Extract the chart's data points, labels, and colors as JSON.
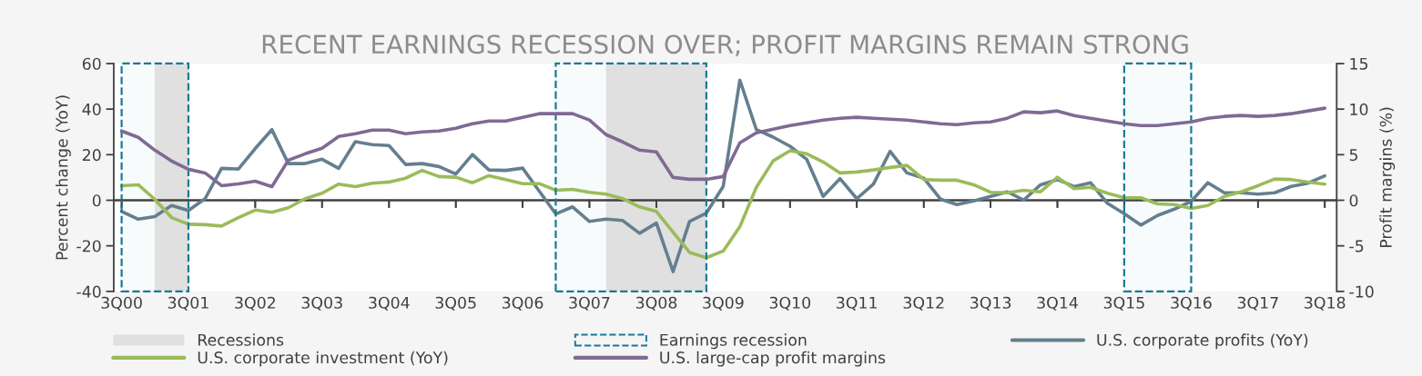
{
  "chart_data": {
    "type": "line",
    "title": "RECENT EARNINGS RECESSION OVER; PROFIT MARGINS REMAIN STRONG",
    "ylabel": "Percent change (YoY)",
    "y2label": "Profit margins (%)",
    "x": [
      "2000-09",
      "2000-12",
      "2001-03",
      "2001-06",
      "2001-09",
      "2001-12",
      "2002-03",
      "2002-06",
      "2002-09",
      "2002-12",
      "2003-03",
      "2003-06",
      "2003-09",
      "2003-12",
      "2004-03",
      "2004-06",
      "2004-09",
      "2004-12",
      "2005-03",
      "2005-06",
      "2005-09",
      "2005-12",
      "2006-03",
      "2006-06",
      "2006-09",
      "2006-12",
      "2007-03",
      "2007-06",
      "2007-09",
      "2007-12",
      "2008-03",
      "2008-06",
      "2008-09",
      "2008-12",
      "2009-03",
      "2009-06",
      "2009-09",
      "2009-12",
      "2010-03",
      "2010-06",
      "2010-09",
      "2010-12",
      "2011-03",
      "2011-06",
      "2011-09",
      "2011-12",
      "2012-03",
      "2012-06",
      "2012-09",
      "2012-12",
      "2013-03",
      "2013-06",
      "2013-09",
      "2013-12",
      "2014-03",
      "2014-06",
      "2014-09",
      "2014-12",
      "2015-03",
      "2015-06",
      "2015-09",
      "2015-12",
      "2016-03",
      "2016-06",
      "2016-09",
      "2016-12",
      "2017-03",
      "2017-06",
      "2017-09",
      "2017-12",
      "2018-03",
      "2018-06",
      "2018-09"
    ],
    "xlim": [
      "2000-07-20",
      "2018-11-05"
    ],
    "xticks": [
      {
        "value": "2000-09",
        "label": "3Q00"
      },
      {
        "value": "2001-09",
        "label": "3Q01"
      },
      {
        "value": "2002-09",
        "label": "3Q02"
      },
      {
        "value": "2003-09",
        "label": "3Q03"
      },
      {
        "value": "2004-09",
        "label": "3Q04"
      },
      {
        "value": "2005-09",
        "label": "3Q05"
      },
      {
        "value": "2006-09",
        "label": "3Q06"
      },
      {
        "value": "2007-09",
        "label": "3Q07"
      },
      {
        "value": "2008-09",
        "label": "3Q08"
      },
      {
        "value": "2009-09",
        "label": "3Q09"
      },
      {
        "value": "2010-09",
        "label": "3Q10"
      },
      {
        "value": "2011-09",
        "label": "3Q11"
      },
      {
        "value": "2012-09",
        "label": "3Q12"
      },
      {
        "value": "2013-09",
        "label": "3Q13"
      },
      {
        "value": "2014-09",
        "label": "3Q14"
      },
      {
        "value": "2015-09",
        "label": "3Q15"
      },
      {
        "value": "2016-09",
        "label": "3Q16"
      },
      {
        "value": "2017-09",
        "label": "3Q17"
      },
      {
        "value": "2018-09",
        "label": "3Q18"
      }
    ],
    "ylim": [
      -40,
      60
    ],
    "yticks": [
      -40,
      -20,
      0,
      20,
      40,
      60
    ],
    "y2lim": [
      -10,
      15
    ],
    "y2ticks": [
      -10,
      -5,
      0,
      5,
      10,
      15
    ],
    "series": [
      {
        "name": "U.S. corporate profits (YoY)",
        "color": "#647f8f",
        "values": [
          -4.9,
          -8.3,
          -7.2,
          -2.3,
          -4.5,
          0.7,
          14,
          13.7,
          22.7,
          31,
          16.1,
          16.1,
          18,
          14,
          25.7,
          24.4,
          24,
          15.7,
          16.1,
          14.8,
          11.5,
          20.1,
          13.3,
          13.1,
          14.1,
          4,
          -6,
          -2.9,
          -9.3,
          -8.3,
          -8.9,
          -14.5,
          -10,
          -31.3,
          -9.3,
          -5.6,
          6.1,
          52.7,
          31,
          27.7,
          23.7,
          18,
          1.7,
          9.5,
          0.7,
          7.1,
          21.5,
          12,
          9.7,
          0.5,
          -1.9,
          -0.3,
          1.7,
          3.7,
          0.1,
          6.8,
          9.1,
          6,
          7.7,
          -1.3,
          -5.9,
          -10.9,
          -6.7,
          -3.9,
          -0.5,
          7.7,
          3.3,
          3.3,
          2.7,
          3.3,
          6.1,
          7.5,
          10.7
        ]
      },
      {
        "name": "U.S. corporate investment (YoY)",
        "color": "#9bbb59",
        "values": [
          6.4,
          6.8,
          0.4,
          -7.6,
          -10.5,
          -10.7,
          -11.3,
          -7.6,
          -4.3,
          -5.3,
          -3.3,
          0.7,
          3.1,
          7.1,
          6,
          7.5,
          8,
          9.7,
          13.1,
          10.4,
          10.1,
          7.7,
          10.8,
          9.1,
          7.3,
          7.3,
          4.4,
          4.8,
          3.5,
          2.7,
          0.7,
          -2.9,
          -4.9,
          -14,
          -22.9,
          -25.2,
          -22.3,
          -11.6,
          5.7,
          17.3,
          21.7,
          20.4,
          16.8,
          12,
          12.4,
          13.3,
          14.4,
          15.3,
          9.1,
          8.8,
          8.8,
          6.8,
          3.5,
          3.3,
          4.4,
          3.7,
          10.1,
          5.1,
          5.7,
          3.1,
          1.1,
          1.1,
          -1.6,
          -1.9,
          -3.6,
          -2.3,
          1.7,
          3.7,
          6.4,
          9.3,
          9.1,
          8,
          7.1
        ]
      },
      {
        "name": "U.S. large-cap profit margins",
        "color": "#7f6a94",
        "axis": "y2",
        "values": [
          7.6,
          6.9,
          5.5,
          4.3,
          3.4,
          3.0,
          1.6,
          1.8,
          2.1,
          1.5,
          4.4,
          5.1,
          5.7,
          7.0,
          7.3,
          7.7,
          7.7,
          7.3,
          7.5,
          7.6,
          7.9,
          8.4,
          8.7,
          8.7,
          9.1,
          9.5,
          9.5,
          9.5,
          8.8,
          7.2,
          6.4,
          5.5,
          5.3,
          2.5,
          2.3,
          2.3,
          2.6,
          6.3,
          7.4,
          7.8,
          8.2,
          8.5,
          8.8,
          9.0,
          9.1,
          9.0,
          8.9,
          8.8,
          8.6,
          8.4,
          8.3,
          8.5,
          8.6,
          9.0,
          9.7,
          9.6,
          9.8,
          9.3,
          9.0,
          8.7,
          8.4,
          8.2,
          8.2,
          8.4,
          8.6,
          9.0,
          9.2,
          9.3,
          9.2,
          9.3,
          9.5,
          9.8,
          10.1
        ]
      }
    ],
    "bands": [
      {
        "axis": "x",
        "from": "2001-03",
        "to": "2001-09",
        "label": "Recessions",
        "color": "#e0e0e0"
      },
      {
        "axis": "x",
        "from": "2007-12",
        "to": "2009-06",
        "color": "#e0e0e0"
      },
      {
        "axis": "x",
        "from": "2000-09",
        "to": "2001-09",
        "label": "Earnings recession",
        "color": "#1a7a94"
      },
      {
        "axis": "x",
        "from": "2007-03",
        "to": "2009-06",
        "color": "#1a7a94"
      },
      {
        "axis": "x",
        "from": "2015-09",
        "to": "2016-09",
        "color": "#1a7a94"
      }
    ],
    "ref_lines": [
      {
        "axis": "y",
        "value": 0,
        "color": "#404040"
      }
    ],
    "legend": "bottom",
    "grid": false,
    "marker": "none",
    "line_style": "solid"
  }
}
